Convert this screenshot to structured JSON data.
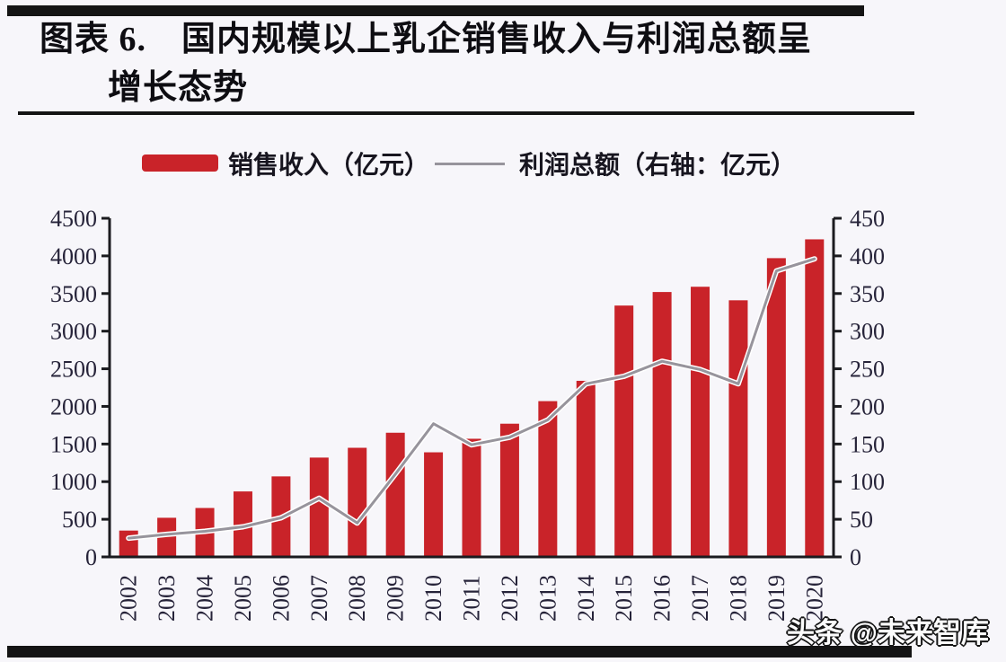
{
  "header": {
    "title_line1": "图表 6.　国内规模以上乳企销售收入与利润总额呈",
    "title_line2": "增长态势"
  },
  "legend": {
    "bar_label": "销售收入（亿元）",
    "line_label": "利润总额（右轴：亿元）"
  },
  "watermark": "头条 @未来智库",
  "colors": {
    "bar": "#c92329",
    "line": "#97949c",
    "line_casing": "#ffffff",
    "axis": "#1b1b1f",
    "tick_text": "#262339",
    "rule": "#141414",
    "background": "#f7f6fa"
  },
  "chart_data": {
    "type": "bar",
    "title": "国内规模以上乳企销售收入与利润总额呈增长态势",
    "categories": [
      "2002",
      "2003",
      "2004",
      "2005",
      "2006",
      "2007",
      "2008",
      "2009",
      "2010",
      "2011",
      "2012",
      "2013",
      "2014",
      "2015",
      "2016",
      "2017",
      "2018",
      "2019",
      "2020"
    ],
    "series": [
      {
        "name": "销售收入（亿元）",
        "type": "bar",
        "axis": "left",
        "values": [
          350,
          520,
          650,
          870,
          1070,
          1320,
          1450,
          1650,
          1390,
          1570,
          1770,
          2070,
          2340,
          3340,
          3520,
          3590,
          3410,
          3970,
          4220
        ]
      },
      {
        "name": "利润总额（右轴：亿元）",
        "type": "line",
        "axis": "right",
        "values": [
          25,
          30,
          34,
          40,
          52,
          78,
          45,
          110,
          177,
          149,
          159,
          182,
          230,
          240,
          260,
          249,
          230,
          380,
          396
        ]
      }
    ],
    "left_axis": {
      "min": 0,
      "max": 4500,
      "step": 500
    },
    "right_axis": {
      "min": 0,
      "max": 450,
      "step": 50
    },
    "grid": false,
    "legend_position": "top"
  }
}
